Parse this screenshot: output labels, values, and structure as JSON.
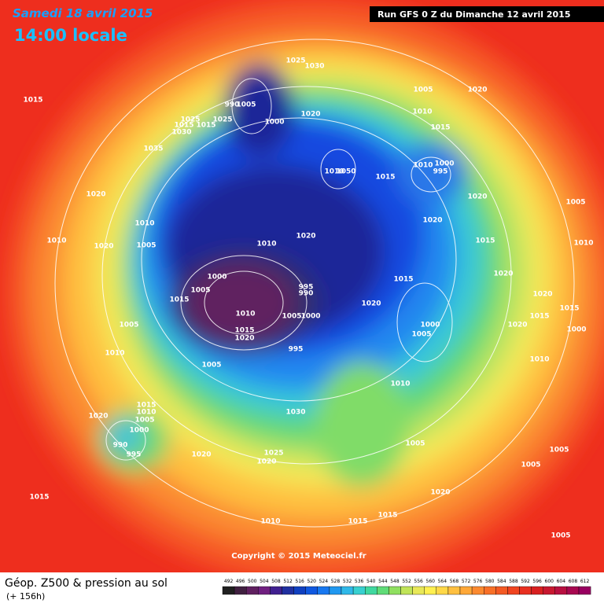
{
  "header": {
    "date": "Samedi 18 avril 2015",
    "time": "14:00 locale",
    "run": "Run GFS 0 Z du Dimanche 12 avril 2015"
  },
  "footer": {
    "title": "Géop. Z500 & pression au sol",
    "lead": "(+ 156h)",
    "copyright": "Copyright © 2015 Meteociel.fr"
  },
  "colorbar": {
    "ticks": [
      492,
      496,
      500,
      504,
      508,
      512,
      516,
      520,
      524,
      528,
      532,
      536,
      540,
      544,
      548,
      552,
      556,
      560,
      564,
      568,
      572,
      576,
      580,
      584,
      588,
      592,
      596,
      600,
      604,
      608,
      612
    ]
  },
  "pressure_labels": [
    1015,
    1025,
    1030,
    990,
    1005,
    1000,
    1025,
    1015,
    1015,
    1025,
    1030,
    1035,
    1020,
    1005,
    1020,
    1010,
    1015,
    1010,
    1000,
    995,
    1010,
    1050,
    1015,
    1020,
    1020,
    1005,
    1020,
    1010,
    1020,
    1010,
    1005,
    1010,
    1020,
    1015,
    1010,
    1000,
    1005,
    995,
    990,
    1020,
    1015,
    1015,
    1020,
    1020,
    1010,
    1005,
    1000,
    1015,
    1005,
    1000,
    1005,
    1020,
    1015,
    1015,
    1020,
    995,
    1000,
    1010,
    1005,
    1010,
    1010,
    1015,
    1010,
    1005,
    1020,
    1030,
    1000,
    990,
    995,
    1020,
    1025,
    1020,
    1005,
    1005,
    1005,
    1015,
    1020,
    1010,
    1015,
    1015,
    1005
  ]
}
